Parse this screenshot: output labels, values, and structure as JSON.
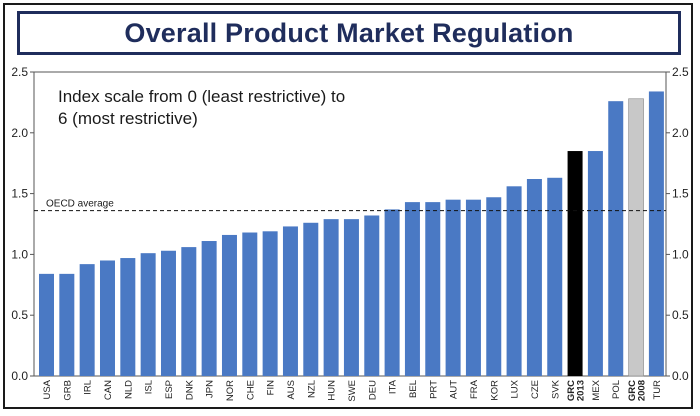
{
  "chart_data": {
    "type": "bar",
    "title": "Overall Product Market Regulation",
    "annotation": [
      "Index scale from 0 (least restrictive) to",
      "6 (most restrictive)"
    ],
    "reference_line": {
      "label": "OECD average",
      "value": 1.36
    },
    "ylim": [
      0,
      2.5
    ],
    "yticks": [
      "0.0",
      "0.5",
      "1.0",
      "1.5",
      "2.0",
      "2.5"
    ],
    "ytick_values": [
      0,
      0.5,
      1.0,
      1.5,
      2.0,
      2.5
    ],
    "colors": {
      "default": "#4a79c4",
      "highlight": "#000000",
      "secondary": "#c8c8c8"
    },
    "categories": [
      [
        "USA"
      ],
      [
        "GRB"
      ],
      [
        "IRL"
      ],
      [
        "CAN"
      ],
      [
        "NLD"
      ],
      [
        "ISL"
      ],
      [
        "ESP"
      ],
      [
        "DNK"
      ],
      [
        "JPN"
      ],
      [
        "NOR"
      ],
      [
        "CHE"
      ],
      [
        "FIN"
      ],
      [
        "AUS"
      ],
      [
        "NZL"
      ],
      [
        "HUN"
      ],
      [
        "SWE"
      ],
      [
        "DEU"
      ],
      [
        "ITA"
      ],
      [
        "BEL"
      ],
      [
        "PRT"
      ],
      [
        "AUT"
      ],
      [
        "FRA"
      ],
      [
        "KOR"
      ],
      [
        "LUX"
      ],
      [
        "CZE"
      ],
      [
        "SVK"
      ],
      [
        "GRC",
        "2013"
      ],
      [
        "MEX"
      ],
      [
        "POL"
      ],
      [
        "GRC",
        "2008"
      ],
      [
        "TUR"
      ]
    ],
    "values": [
      0.84,
      0.84,
      0.92,
      0.95,
      0.97,
      1.01,
      1.03,
      1.06,
      1.11,
      1.16,
      1.18,
      1.19,
      1.23,
      1.26,
      1.29,
      1.29,
      1.32,
      1.37,
      1.43,
      1.43,
      1.45,
      1.45,
      1.47,
      1.56,
      1.62,
      1.63,
      1.85,
      1.85,
      2.26,
      2.28,
      2.34
    ],
    "bar_style": [
      "default",
      "default",
      "default",
      "default",
      "default",
      "default",
      "default",
      "default",
      "default",
      "default",
      "default",
      "default",
      "default",
      "default",
      "default",
      "default",
      "default",
      "default",
      "default",
      "default",
      "default",
      "default",
      "default",
      "default",
      "default",
      "default",
      "highlight",
      "default",
      "default",
      "secondary",
      "default"
    ],
    "bold_labels": [
      false,
      false,
      false,
      false,
      false,
      false,
      false,
      false,
      false,
      false,
      false,
      false,
      false,
      false,
      false,
      false,
      false,
      false,
      false,
      false,
      false,
      false,
      false,
      false,
      false,
      false,
      true,
      false,
      false,
      true,
      false
    ]
  }
}
